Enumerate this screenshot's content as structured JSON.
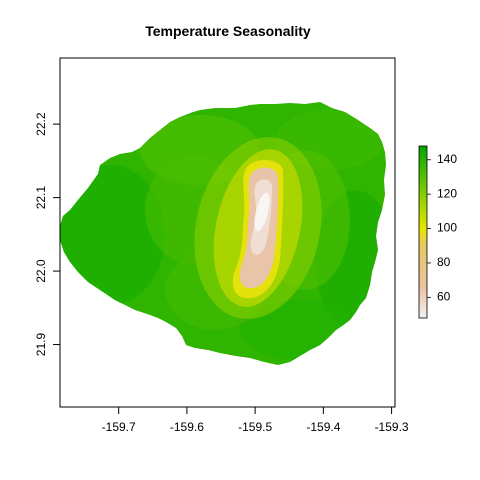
{
  "chart_data": {
    "type": "heatmap",
    "title": "Temperature Seasonality",
    "xlabel": "",
    "ylabel": "",
    "x_ticks": [
      -159.7,
      -159.6,
      -159.5,
      -159.4,
      -159.3
    ],
    "x_tick_labels": [
      "-159.7",
      "-159.6",
      "-159.5",
      "-159.4",
      "-159.3"
    ],
    "y_ticks": [
      21.9,
      22.0,
      22.1,
      22.2
    ],
    "y_tick_labels": [
      "21.9",
      "22.0",
      "22.1",
      "22.2"
    ],
    "xlim": [
      -159.786,
      -159.295
    ],
    "ylim": [
      21.815,
      22.29
    ],
    "legend": {
      "placement": "right",
      "range": [
        48,
        148
      ],
      "ticks": [
        60,
        80,
        100,
        120,
        140
      ],
      "tick_labels": [
        "60",
        "80",
        "100",
        "120",
        "140"
      ],
      "color_stops": [
        {
          "value": 48,
          "color": "#f2f2f2"
        },
        {
          "value": 65,
          "color": "#ecc2a7"
        },
        {
          "value": 90,
          "color": "#e7c960"
        },
        {
          "value": 100,
          "color": "#e6e600"
        },
        {
          "value": 115,
          "color": "#9ed400"
        },
        {
          "value": 130,
          "color": "#55c000"
        },
        {
          "value": 148,
          "color": "#00a600"
        }
      ]
    },
    "colors": {
      "low": "#f2f2f2",
      "mid_low": "#ecc2a7",
      "mid": "#e6e600",
      "high": "#00a600"
    },
    "grid": false
  }
}
